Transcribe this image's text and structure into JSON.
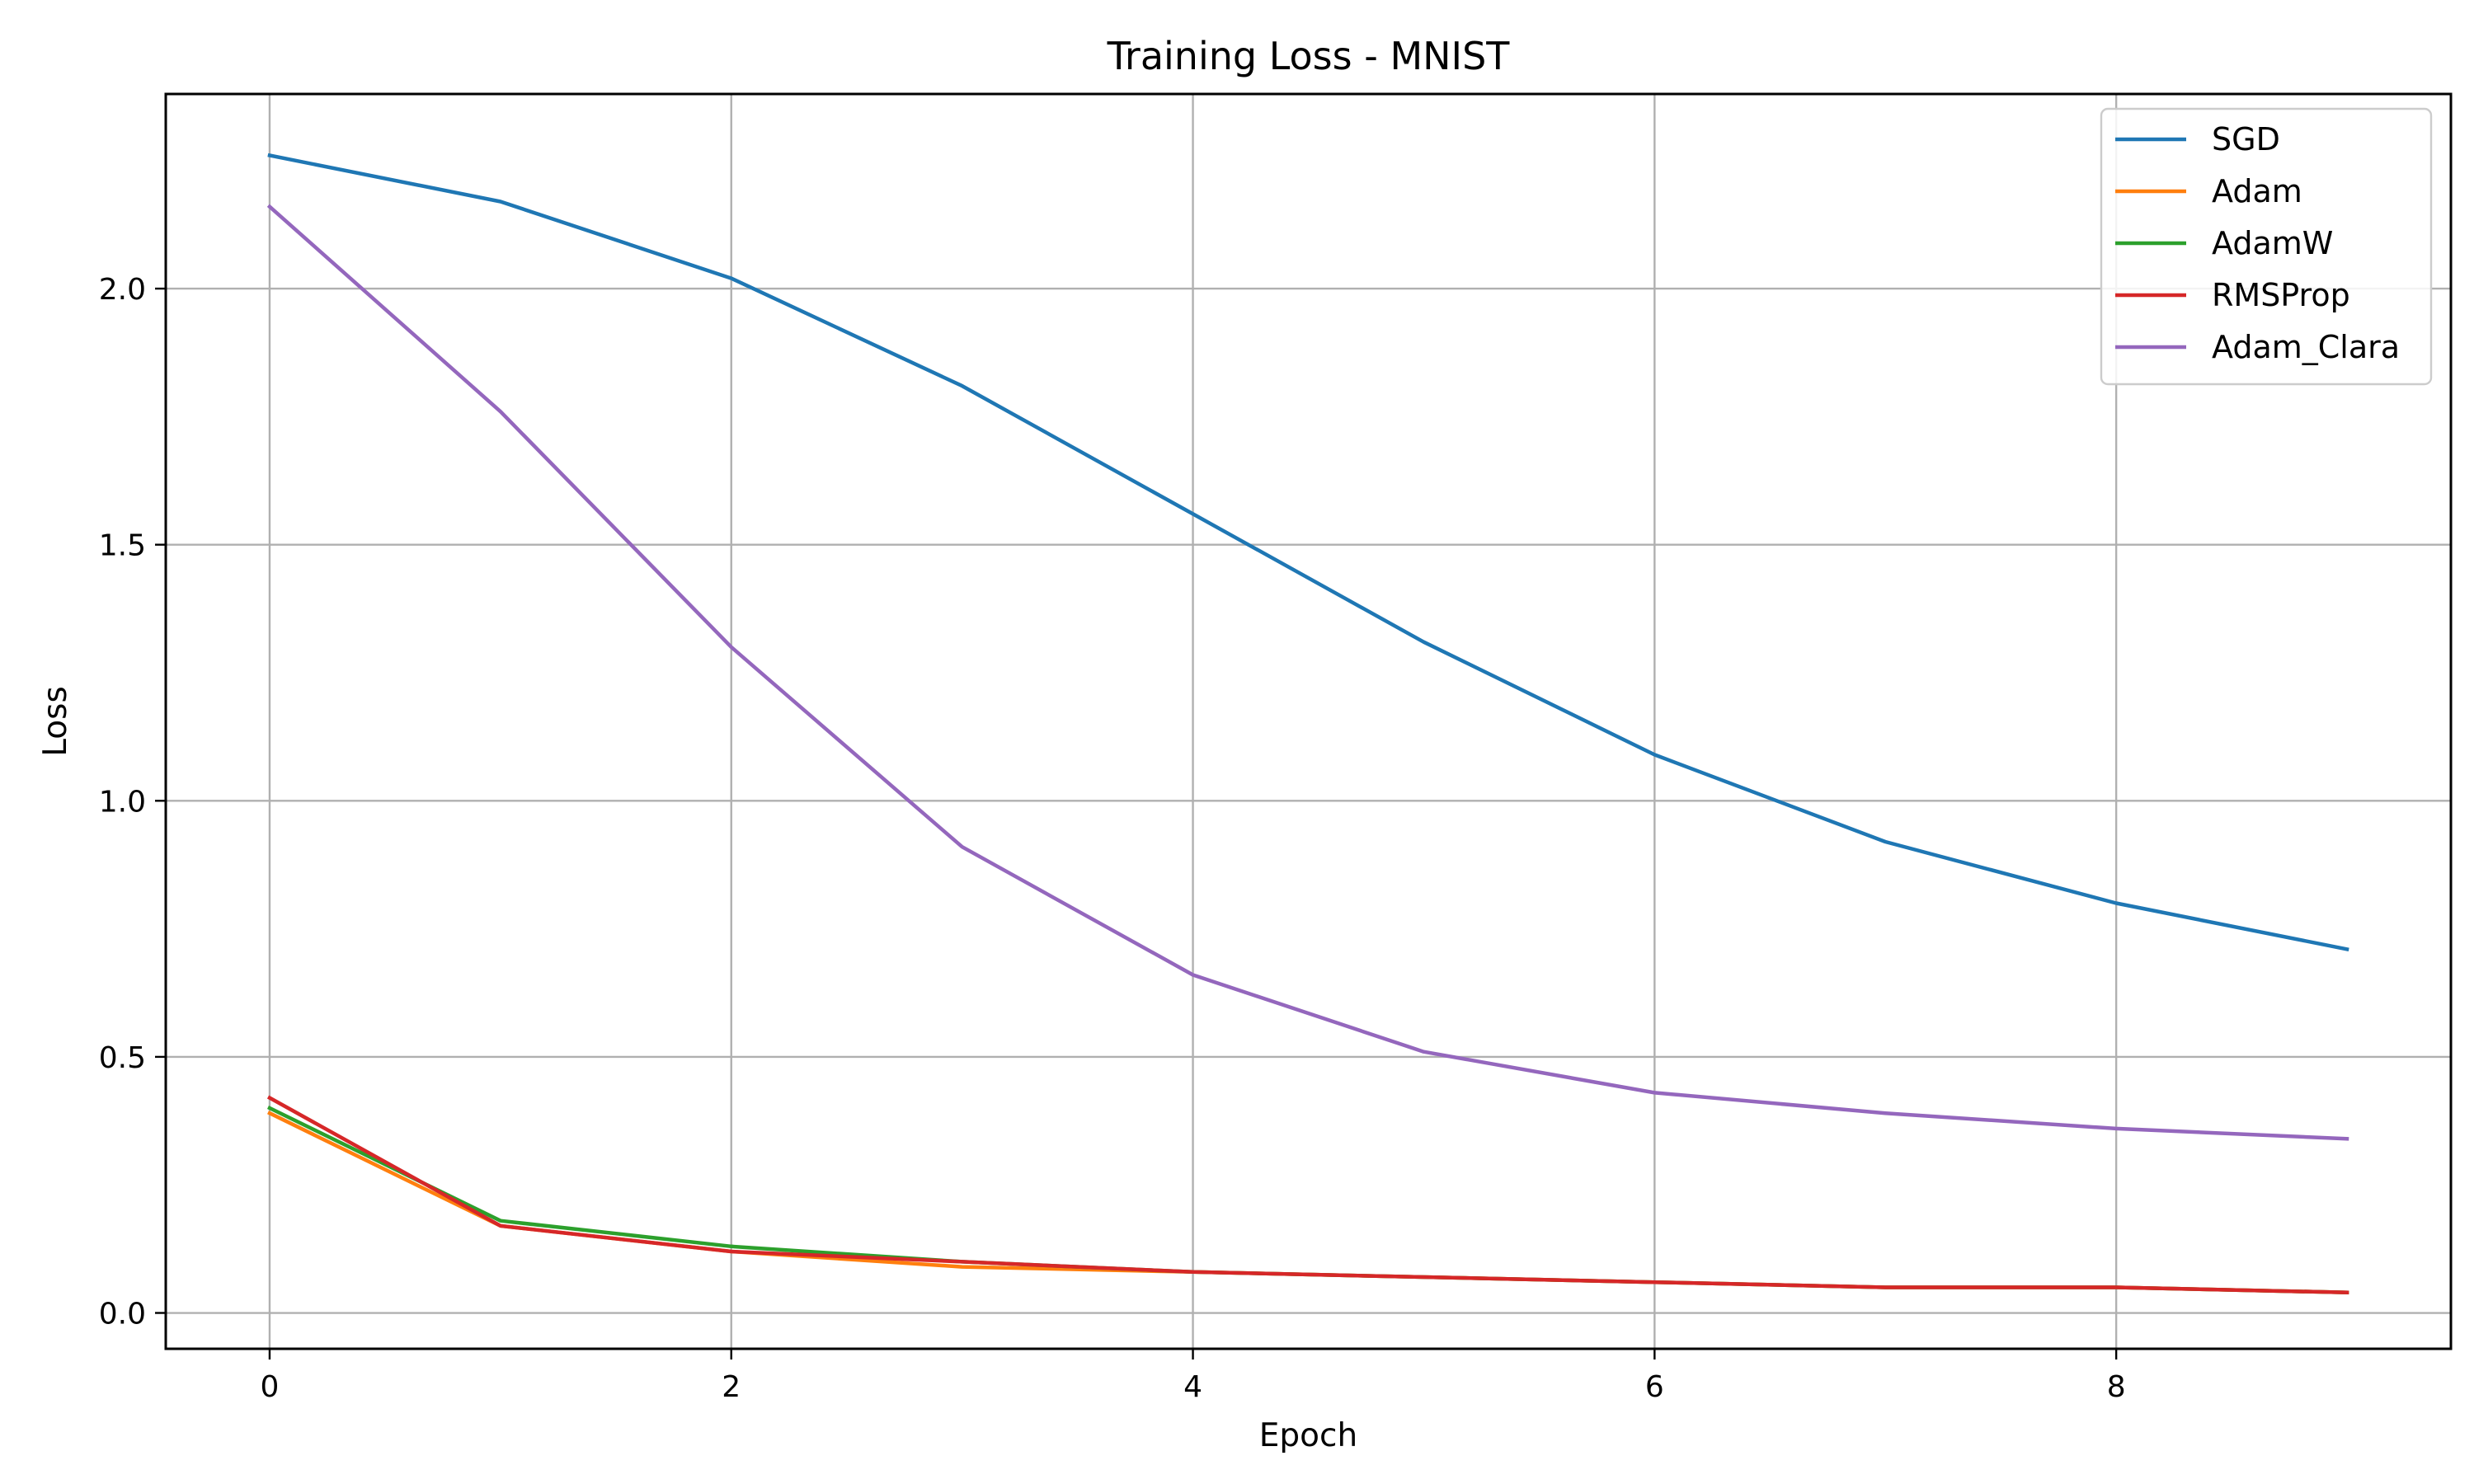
{
  "chart_data": {
    "type": "line",
    "title": "Training Loss - MNIST",
    "xlabel": "Epoch",
    "ylabel": "Loss",
    "x": [
      0,
      1,
      2,
      3,
      4,
      5,
      6,
      7,
      8,
      9
    ],
    "xlim": [
      -0.45,
      9.45
    ],
    "ylim": [
      -0.07,
      2.38
    ],
    "xticks": [
      0,
      2,
      4,
      6,
      8
    ],
    "xtick_labels": [
      "0",
      "2",
      "4",
      "6",
      "8"
    ],
    "yticks": [
      0.0,
      0.5,
      1.0,
      1.5,
      2.0
    ],
    "ytick_labels": [
      "0.0",
      "0.5",
      "1.0",
      "1.5",
      "2.0"
    ],
    "grid": true,
    "legend_position": "top-right",
    "series": [
      {
        "name": "SGD",
        "color": "#1f77b4",
        "values": [
          2.26,
          2.17,
          2.02,
          1.81,
          1.56,
          1.31,
          1.09,
          0.92,
          0.8,
          0.71
        ]
      },
      {
        "name": "Adam",
        "color": "#ff7f0e",
        "values": [
          0.39,
          0.17,
          0.12,
          0.09,
          0.08,
          0.07,
          0.06,
          0.05,
          0.05,
          0.04
        ]
      },
      {
        "name": "AdamW",
        "color": "#2ca02c",
        "values": [
          0.4,
          0.18,
          0.13,
          0.1,
          0.08,
          0.07,
          0.06,
          0.05,
          0.05,
          0.04
        ]
      },
      {
        "name": "RMSProp",
        "color": "#d62728",
        "values": [
          0.42,
          0.17,
          0.12,
          0.1,
          0.08,
          0.07,
          0.06,
          0.05,
          0.05,
          0.04
        ]
      },
      {
        "name": "Adam_Clara",
        "color": "#9467bd",
        "values": [
          2.16,
          1.76,
          1.3,
          0.91,
          0.66,
          0.51,
          0.43,
          0.39,
          0.36,
          0.34
        ]
      }
    ]
  }
}
